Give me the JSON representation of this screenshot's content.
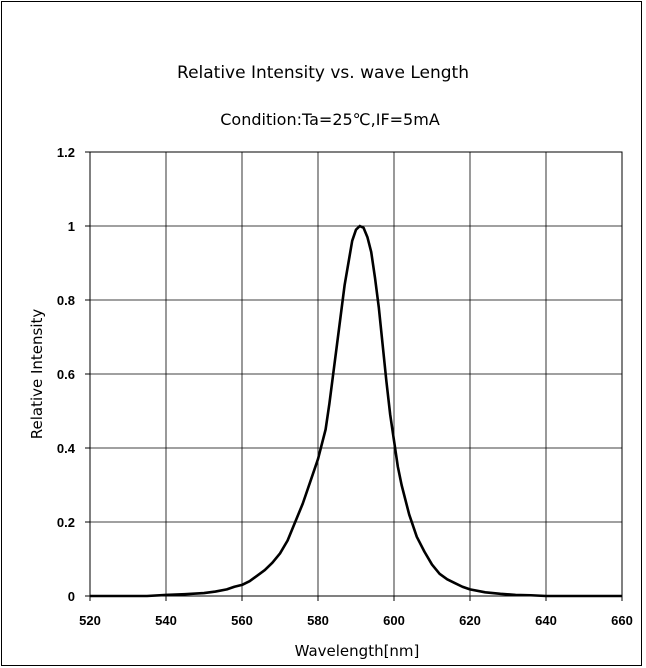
{
  "chart_data": {
    "type": "line",
    "title": "Relative Intensity vs. wave Length",
    "subtitle": "Condition:Ta=25℃,IF=5mA",
    "xlabel": "Wavelength[nm]",
    "ylabel": "Relative Intensity",
    "xlim": [
      520,
      660
    ],
    "ylim": [
      0,
      1.2
    ],
    "x_ticks": [
      520,
      540,
      560,
      580,
      600,
      620,
      640,
      660
    ],
    "y_ticks": [
      0,
      0.2,
      0.4,
      0.6,
      0.8,
      1,
      1.2
    ],
    "grid": true,
    "line_color": "#000000",
    "series": [
      {
        "x": [
          520,
          530,
          535,
          540,
          545,
          550,
          553,
          556,
          558,
          560,
          562,
          564,
          566,
          568,
          570,
          572,
          574,
          576,
          578,
          580,
          582,
          583,
          584,
          585,
          586,
          587,
          588,
          589,
          590,
          591,
          592,
          593,
          594,
          595,
          596,
          597,
          598,
          599,
          600,
          601,
          602,
          604,
          606,
          608,
          610,
          612,
          614,
          616,
          618,
          620,
          624,
          628,
          632,
          636,
          640,
          645,
          650,
          660
        ],
        "y": [
          0.0,
          0.0,
          0.0,
          0.003,
          0.005,
          0.008,
          0.012,
          0.018,
          0.025,
          0.03,
          0.04,
          0.055,
          0.07,
          0.09,
          0.115,
          0.15,
          0.2,
          0.25,
          0.31,
          0.37,
          0.45,
          0.52,
          0.6,
          0.68,
          0.76,
          0.84,
          0.9,
          0.96,
          0.99,
          1.0,
          0.995,
          0.97,
          0.93,
          0.86,
          0.78,
          0.68,
          0.58,
          0.49,
          0.42,
          0.35,
          0.3,
          0.22,
          0.16,
          0.12,
          0.085,
          0.06,
          0.045,
          0.035,
          0.025,
          0.018,
          0.01,
          0.006,
          0.003,
          0.002,
          0.0,
          0.0,
          0.0,
          0.0
        ]
      }
    ]
  }
}
